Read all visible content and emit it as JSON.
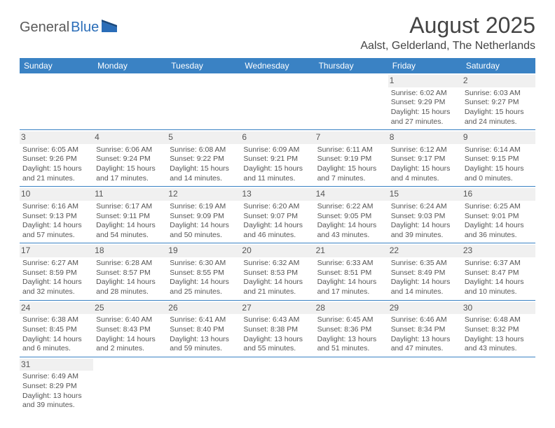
{
  "logo": {
    "part1": "General",
    "part2": "Blue"
  },
  "title": "August 2025",
  "location": "Aalst, Gelderland, The Netherlands",
  "dayHeaders": [
    "Sunday",
    "Monday",
    "Tuesday",
    "Wednesday",
    "Thursday",
    "Friday",
    "Saturday"
  ],
  "colors": {
    "headerBg": "#3a82c4",
    "headerText": "#ffffff",
    "border": "#3a82c4",
    "dayBg": "#f0f0f0",
    "text": "#555555",
    "logoBlue": "#2a6db8"
  },
  "weeks": [
    [
      null,
      null,
      null,
      null,
      null,
      {
        "n": "1",
        "sr": "Sunrise: 6:02 AM",
        "ss": "Sunset: 9:29 PM",
        "d1": "Daylight: 15 hours",
        "d2": "and 27 minutes."
      },
      {
        "n": "2",
        "sr": "Sunrise: 6:03 AM",
        "ss": "Sunset: 9:27 PM",
        "d1": "Daylight: 15 hours",
        "d2": "and 24 minutes."
      }
    ],
    [
      {
        "n": "3",
        "sr": "Sunrise: 6:05 AM",
        "ss": "Sunset: 9:26 PM",
        "d1": "Daylight: 15 hours",
        "d2": "and 21 minutes."
      },
      {
        "n": "4",
        "sr": "Sunrise: 6:06 AM",
        "ss": "Sunset: 9:24 PM",
        "d1": "Daylight: 15 hours",
        "d2": "and 17 minutes."
      },
      {
        "n": "5",
        "sr": "Sunrise: 6:08 AM",
        "ss": "Sunset: 9:22 PM",
        "d1": "Daylight: 15 hours",
        "d2": "and 14 minutes."
      },
      {
        "n": "6",
        "sr": "Sunrise: 6:09 AM",
        "ss": "Sunset: 9:21 PM",
        "d1": "Daylight: 15 hours",
        "d2": "and 11 minutes."
      },
      {
        "n": "7",
        "sr": "Sunrise: 6:11 AM",
        "ss": "Sunset: 9:19 PM",
        "d1": "Daylight: 15 hours",
        "d2": "and 7 minutes."
      },
      {
        "n": "8",
        "sr": "Sunrise: 6:12 AM",
        "ss": "Sunset: 9:17 PM",
        "d1": "Daylight: 15 hours",
        "d2": "and 4 minutes."
      },
      {
        "n": "9",
        "sr": "Sunrise: 6:14 AM",
        "ss": "Sunset: 9:15 PM",
        "d1": "Daylight: 15 hours",
        "d2": "and 0 minutes."
      }
    ],
    [
      {
        "n": "10",
        "sr": "Sunrise: 6:16 AM",
        "ss": "Sunset: 9:13 PM",
        "d1": "Daylight: 14 hours",
        "d2": "and 57 minutes."
      },
      {
        "n": "11",
        "sr": "Sunrise: 6:17 AM",
        "ss": "Sunset: 9:11 PM",
        "d1": "Daylight: 14 hours",
        "d2": "and 54 minutes."
      },
      {
        "n": "12",
        "sr": "Sunrise: 6:19 AM",
        "ss": "Sunset: 9:09 PM",
        "d1": "Daylight: 14 hours",
        "d2": "and 50 minutes."
      },
      {
        "n": "13",
        "sr": "Sunrise: 6:20 AM",
        "ss": "Sunset: 9:07 PM",
        "d1": "Daylight: 14 hours",
        "d2": "and 46 minutes."
      },
      {
        "n": "14",
        "sr": "Sunrise: 6:22 AM",
        "ss": "Sunset: 9:05 PM",
        "d1": "Daylight: 14 hours",
        "d2": "and 43 minutes."
      },
      {
        "n": "15",
        "sr": "Sunrise: 6:24 AM",
        "ss": "Sunset: 9:03 PM",
        "d1": "Daylight: 14 hours",
        "d2": "and 39 minutes."
      },
      {
        "n": "16",
        "sr": "Sunrise: 6:25 AM",
        "ss": "Sunset: 9:01 PM",
        "d1": "Daylight: 14 hours",
        "d2": "and 36 minutes."
      }
    ],
    [
      {
        "n": "17",
        "sr": "Sunrise: 6:27 AM",
        "ss": "Sunset: 8:59 PM",
        "d1": "Daylight: 14 hours",
        "d2": "and 32 minutes."
      },
      {
        "n": "18",
        "sr": "Sunrise: 6:28 AM",
        "ss": "Sunset: 8:57 PM",
        "d1": "Daylight: 14 hours",
        "d2": "and 28 minutes."
      },
      {
        "n": "19",
        "sr": "Sunrise: 6:30 AM",
        "ss": "Sunset: 8:55 PM",
        "d1": "Daylight: 14 hours",
        "d2": "and 25 minutes."
      },
      {
        "n": "20",
        "sr": "Sunrise: 6:32 AM",
        "ss": "Sunset: 8:53 PM",
        "d1": "Daylight: 14 hours",
        "d2": "and 21 minutes."
      },
      {
        "n": "21",
        "sr": "Sunrise: 6:33 AM",
        "ss": "Sunset: 8:51 PM",
        "d1": "Daylight: 14 hours",
        "d2": "and 17 minutes."
      },
      {
        "n": "22",
        "sr": "Sunrise: 6:35 AM",
        "ss": "Sunset: 8:49 PM",
        "d1": "Daylight: 14 hours",
        "d2": "and 14 minutes."
      },
      {
        "n": "23",
        "sr": "Sunrise: 6:37 AM",
        "ss": "Sunset: 8:47 PM",
        "d1": "Daylight: 14 hours",
        "d2": "and 10 minutes."
      }
    ],
    [
      {
        "n": "24",
        "sr": "Sunrise: 6:38 AM",
        "ss": "Sunset: 8:45 PM",
        "d1": "Daylight: 14 hours",
        "d2": "and 6 minutes."
      },
      {
        "n": "25",
        "sr": "Sunrise: 6:40 AM",
        "ss": "Sunset: 8:43 PM",
        "d1": "Daylight: 14 hours",
        "d2": "and 2 minutes."
      },
      {
        "n": "26",
        "sr": "Sunrise: 6:41 AM",
        "ss": "Sunset: 8:40 PM",
        "d1": "Daylight: 13 hours",
        "d2": "and 59 minutes."
      },
      {
        "n": "27",
        "sr": "Sunrise: 6:43 AM",
        "ss": "Sunset: 8:38 PM",
        "d1": "Daylight: 13 hours",
        "d2": "and 55 minutes."
      },
      {
        "n": "28",
        "sr": "Sunrise: 6:45 AM",
        "ss": "Sunset: 8:36 PM",
        "d1": "Daylight: 13 hours",
        "d2": "and 51 minutes."
      },
      {
        "n": "29",
        "sr": "Sunrise: 6:46 AM",
        "ss": "Sunset: 8:34 PM",
        "d1": "Daylight: 13 hours",
        "d2": "and 47 minutes."
      },
      {
        "n": "30",
        "sr": "Sunrise: 6:48 AM",
        "ss": "Sunset: 8:32 PM",
        "d1": "Daylight: 13 hours",
        "d2": "and 43 minutes."
      }
    ],
    [
      {
        "n": "31",
        "sr": "Sunrise: 6:49 AM",
        "ss": "Sunset: 8:29 PM",
        "d1": "Daylight: 13 hours",
        "d2": "and 39 minutes."
      },
      null,
      null,
      null,
      null,
      null,
      null
    ]
  ]
}
